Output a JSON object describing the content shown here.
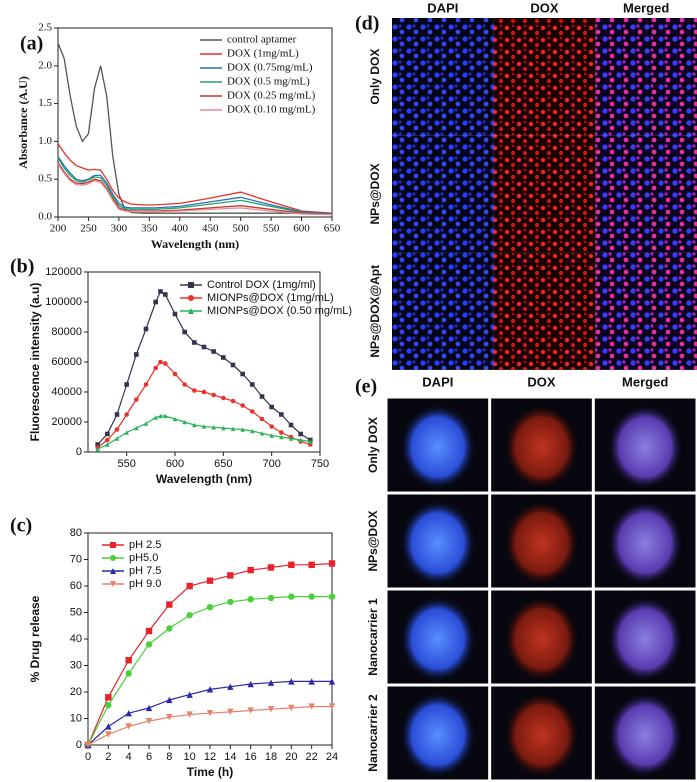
{
  "chart_data": [
    {
      "type": "line",
      "label": "(a)",
      "xlabel": "Wavelength (nm)",
      "ylabel": "Absorbance (A.U)",
      "x": [
        200,
        210,
        220,
        230,
        240,
        250,
        260,
        270,
        280,
        290,
        300,
        310,
        320,
        340,
        360,
        400,
        450,
        500,
        550,
        600,
        650
      ],
      "xlim": [
        200,
        650
      ],
      "ylim": [
        0,
        2.5
      ],
      "xticks": [
        200,
        250,
        300,
        350,
        400,
        450,
        500,
        550,
        600,
        650
      ],
      "yticks": [
        {
          "value": 0,
          "label": "0.0"
        },
        0.5,
        {
          "value": 1,
          "label": "1.0"
        },
        1.5,
        {
          "value": 2,
          "label": "2.0"
        },
        2.5
      ],
      "legend": "upper right",
      "series": [
        {
          "name": "control aptamer",
          "color": "#555555",
          "values": [
            2.3,
            2.1,
            1.6,
            1.2,
            1.0,
            1.1,
            1.7,
            2.0,
            1.6,
            0.8,
            0.3,
            0.1,
            0.06,
            0.05,
            0.05,
            0.05,
            0.05,
            0.05,
            0.05,
            0.05,
            0.05
          ]
        },
        {
          "name": "DOX (1mg/mL)",
          "color": "#e8322a",
          "values": [
            0.97,
            0.85,
            0.75,
            0.68,
            0.65,
            0.62,
            0.63,
            0.62,
            0.5,
            0.35,
            0.25,
            0.2,
            0.17,
            0.16,
            0.16,
            0.18,
            0.25,
            0.33,
            0.2,
            0.08,
            0.05
          ]
        },
        {
          "name": "DOX (0.75mg/mL)",
          "color": "#2f6fb5",
          "values": [
            0.8,
            0.68,
            0.58,
            0.5,
            0.48,
            0.5,
            0.55,
            0.55,
            0.45,
            0.3,
            0.18,
            0.13,
            0.12,
            0.12,
            0.12,
            0.14,
            0.2,
            0.26,
            0.16,
            0.07,
            0.05
          ]
        },
        {
          "name": "DOX (0.5 mg/mL)",
          "color": "#22a36b",
          "values": [
            0.78,
            0.65,
            0.55,
            0.48,
            0.46,
            0.49,
            0.53,
            0.52,
            0.42,
            0.27,
            0.15,
            0.11,
            0.1,
            0.1,
            0.1,
            0.12,
            0.17,
            0.22,
            0.14,
            0.06,
            0.04
          ]
        },
        {
          "name": "DOX (0.25 mg/mL)",
          "color": "#c0392b",
          "values": [
            0.72,
            0.6,
            0.5,
            0.45,
            0.44,
            0.46,
            0.5,
            0.48,
            0.38,
            0.24,
            0.12,
            0.09,
            0.08,
            0.08,
            0.08,
            0.09,
            0.12,
            0.15,
            0.1,
            0.05,
            0.04
          ]
        },
        {
          "name": "DOX (0.10 mg/mL)",
          "color": "#e58a9a",
          "values": [
            0.7,
            0.58,
            0.48,
            0.43,
            0.42,
            0.44,
            0.48,
            0.46,
            0.36,
            0.22,
            0.1,
            0.08,
            0.07,
            0.07,
            0.07,
            0.08,
            0.1,
            0.12,
            0.08,
            0.04,
            0.03
          ]
        }
      ]
    },
    {
      "type": "line",
      "label": "(b)",
      "xlabel": "Wavelength (nm)",
      "ylabel": "Fluorescence intensity (a.u)",
      "x": [
        520,
        530,
        540,
        550,
        560,
        570,
        580,
        585,
        590,
        600,
        610,
        620,
        630,
        640,
        650,
        660,
        670,
        680,
        690,
        700,
        710,
        720,
        730,
        740
      ],
      "xlim": [
        510,
        750
      ],
      "ylim": [
        0,
        120000
      ],
      "xticks": [
        550,
        600,
        650,
        700,
        750
      ],
      "yticks": [
        0,
        20000,
        40000,
        60000,
        80000,
        100000,
        120000
      ],
      "legend": "upper right",
      "series": [
        {
          "name": "Control DOX (1mg/ml)",
          "color": "#34344e",
          "marker": "square",
          "values": [
            5000,
            12000,
            25000,
            45000,
            65000,
            82000,
            100000,
            107000,
            105000,
            92000,
            80000,
            73000,
            70000,
            67000,
            63000,
            58000,
            52000,
            45000,
            37000,
            30000,
            25000,
            18000,
            12000,
            8000
          ]
        },
        {
          "name": "MIONPs@DOX (1mg/mL)",
          "color": "#e8322a",
          "marker": "circle",
          "values": [
            3000,
            8000,
            15000,
            25000,
            35000,
            45000,
            56000,
            60000,
            59000,
            52000,
            45000,
            41000,
            40000,
            38000,
            36000,
            34000,
            31000,
            27000,
            22000,
            17000,
            13000,
            10000,
            7000,
            5000
          ]
        },
        {
          "name": "MIONPs@DOX (0.50 mg/mL)",
          "color": "#2bb35a",
          "marker": "triangle",
          "values": [
            2000,
            5000,
            9000,
            13000,
            16000,
            19000,
            23000,
            24000,
            24000,
            22000,
            20000,
            18000,
            17000,
            16500,
            16000,
            15500,
            15000,
            14000,
            12500,
            11000,
            10000,
            9000,
            8000,
            7000
          ]
        }
      ]
    },
    {
      "type": "line",
      "label": "(c)",
      "xlabel": "Time (h)",
      "ylabel": "% Drug release",
      "x": [
        0,
        2,
        4,
        6,
        8,
        10,
        12,
        14,
        16,
        18,
        20,
        22,
        24
      ],
      "xlim": [
        0,
        24
      ],
      "ylim": [
        0,
        80
      ],
      "xticks": [
        0,
        2,
        4,
        6,
        8,
        10,
        12,
        14,
        16,
        18,
        20,
        22,
        24
      ],
      "yticks": [
        0,
        10,
        20,
        30,
        40,
        50,
        60,
        70,
        80
      ],
      "legend": "upper left",
      "series": [
        {
          "name": "pH 2.5",
          "color": "#e8222a",
          "marker": "square",
          "values": [
            0,
            18,
            32,
            43,
            53,
            60,
            62,
            64,
            66,
            67,
            68,
            68,
            68.5
          ]
        },
        {
          "name": "pH5.0",
          "color": "#4ccf3a",
          "marker": "circle",
          "values": [
            0,
            15,
            27,
            38,
            44,
            49,
            52,
            54,
            55,
            55.5,
            56,
            56,
            56
          ]
        },
        {
          "name": "pH 7.5",
          "color": "#2a2aa8",
          "marker": "triangle",
          "values": [
            0,
            7,
            12,
            14,
            17,
            19,
            21,
            22,
            23,
            23.5,
            24,
            24,
            24
          ]
        },
        {
          "name": "pH 9.0",
          "color": "#e6846a",
          "marker": "triangle-down",
          "values": [
            0,
            4,
            7,
            9,
            10.5,
            11.5,
            12,
            12.5,
            13,
            13.5,
            14,
            14.5,
            14.5
          ]
        }
      ]
    }
  ],
  "image_panels": [
    {
      "label": "(d)",
      "columns": [
        "DAPI",
        "DOX",
        "Merged"
      ],
      "rows": [
        "Only DOX",
        "NPs@DOX",
        "NPs@DOX@Apt"
      ]
    },
    {
      "label": "(e)",
      "columns": [
        "DAPI",
        "DOX",
        "Merged"
      ],
      "rows": [
        "Only DOX",
        "NPs@DOX",
        "Nanocarrier 1",
        "Nanocarrier 2"
      ]
    }
  ]
}
